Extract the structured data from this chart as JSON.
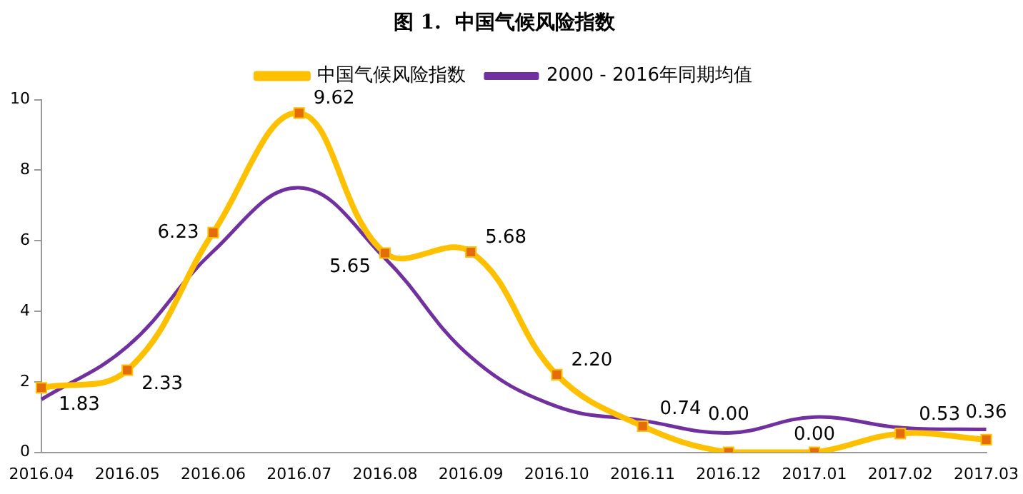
{
  "chart_data": {
    "type": "line",
    "title": "图 1.  中国气候风险指数",
    "categories": [
      "2016.04",
      "2016.05",
      "2016.06",
      "2016.07",
      "2016.08",
      "2016.09",
      "2016.10",
      "2016.11",
      "2016.12",
      "2017.01",
      "2017.02",
      "2017.03"
    ],
    "series": [
      {
        "name": "中国气候风险指数",
        "color": "#ffc000",
        "marker": "square",
        "values": [
          1.83,
          2.33,
          6.23,
          9.62,
          5.65,
          5.68,
          2.2,
          0.74,
          0,
          0,
          0.53,
          0.36
        ],
        "value_labels": [
          "1.83",
          "2.33",
          "6.23",
          "9.62",
          "5.65",
          "5.68",
          "2.20",
          "0.74",
          "0.00",
          "0.00",
          "0.53",
          "0.36"
        ]
      },
      {
        "name": "2000 - 2016年同期均值",
        "color": "#7030a0",
        "marker": "none",
        "values": [
          1.5,
          3.0,
          5.7,
          7.5,
          5.5,
          2.7,
          1.3,
          0.9,
          0.55,
          1.0,
          0.7,
          0.65
        ]
      }
    ],
    "ylim": [
      0,
      10
    ],
    "yticks": [
      0,
      2,
      4,
      6,
      8,
      10
    ],
    "grid": false,
    "legend": "top"
  }
}
